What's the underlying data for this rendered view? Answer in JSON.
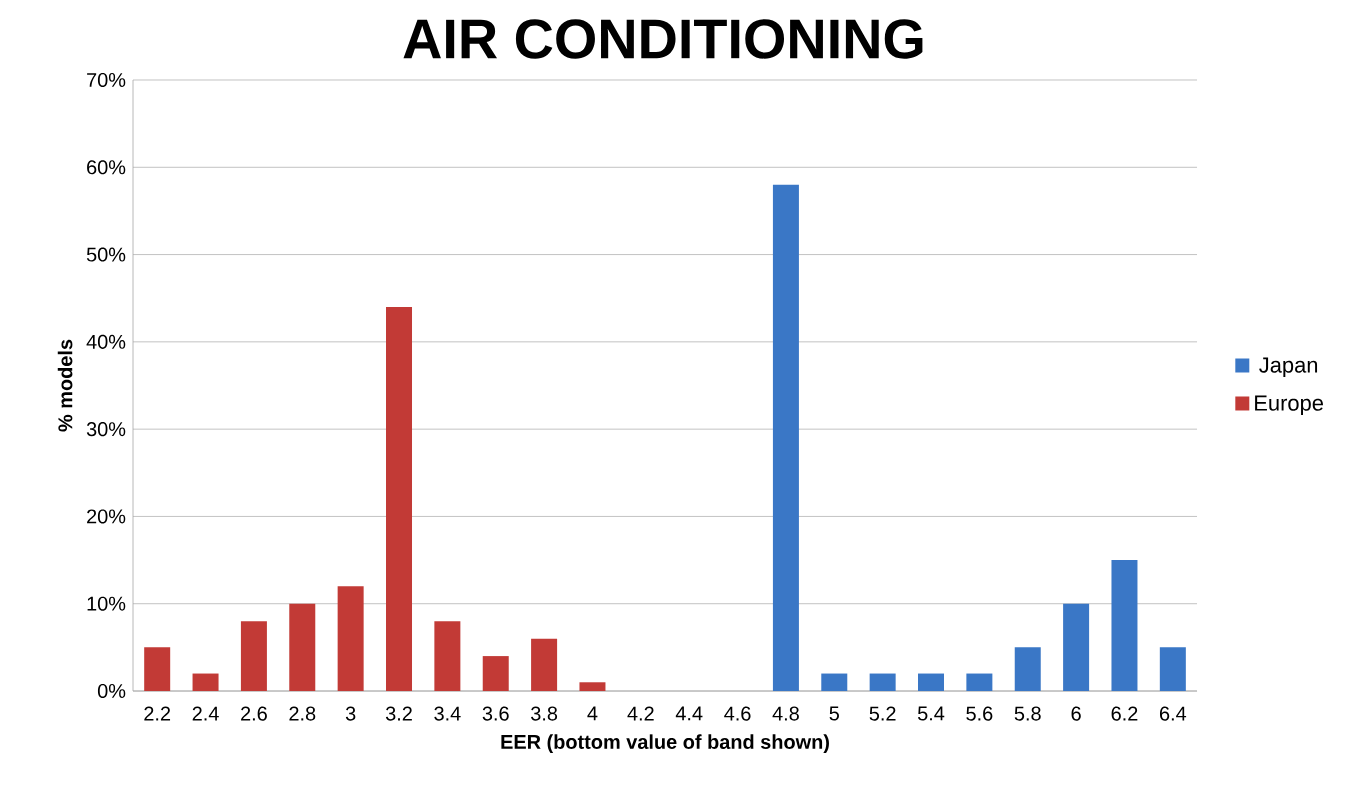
{
  "chart_data": {
    "type": "bar",
    "title": "AIR CONDITIONING",
    "xlabel": "EER (bottom value of band shown)",
    "ylabel": "% models",
    "categories": [
      "2.2",
      "2.4",
      "2.6",
      "2.8",
      "3",
      "3.2",
      "3.4",
      "3.6",
      "3.8",
      "4",
      "4.2",
      "4.4",
      "4.6",
      "4.8",
      "5",
      "5.2",
      "5.4",
      "5.6",
      "5.8",
      "6",
      "6.2",
      "6.4"
    ],
    "series": [
      {
        "name": "Japan",
        "color": "#3a77c6",
        "values": [
          null,
          null,
          null,
          null,
          null,
          null,
          null,
          null,
          null,
          null,
          null,
          null,
          null,
          58,
          2,
          2,
          2,
          2,
          5,
          10,
          15,
          5
        ]
      },
      {
        "name": "Europe",
        "color": "#c23a36",
        "values": [
          5,
          2,
          8,
          10,
          12,
          44,
          8,
          4,
          6,
          1,
          null,
          null,
          null,
          null,
          null,
          null,
          null,
          null,
          null,
          null,
          null,
          null
        ]
      }
    ],
    "ylim": [
      0,
      70
    ],
    "yticks": [
      {
        "value": 0,
        "label": "0%"
      },
      {
        "value": 10,
        "label": "10%"
      },
      {
        "value": 20,
        "label": "20%"
      },
      {
        "value": 30,
        "label": "30%"
      },
      {
        "value": 40,
        "label": "40%"
      },
      {
        "value": 50,
        "label": "50%"
      },
      {
        "value": 60,
        "label": "60%"
      },
      {
        "value": 70,
        "label": "70%"
      }
    ],
    "grid": "y",
    "legend": "right"
  }
}
